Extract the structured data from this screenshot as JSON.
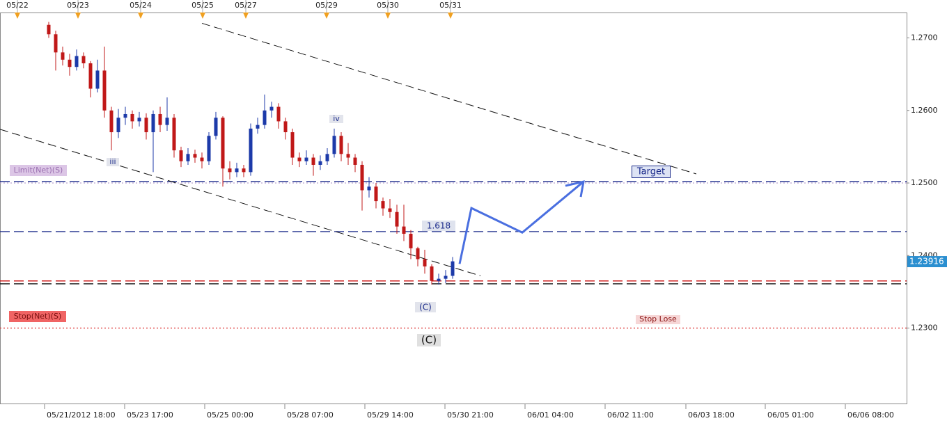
{
  "chart_data": {
    "type": "candlestick",
    "x": [
      14,
      16,
      18,
      20,
      22,
      24,
      26,
      28,
      30,
      32,
      34,
      36,
      38,
      40,
      42,
      44,
      46,
      48,
      50,
      52,
      54,
      56,
      58,
      60,
      62,
      64,
      66,
      68,
      70,
      72,
      74,
      76,
      78,
      80,
      82,
      84,
      86,
      88,
      90,
      92,
      94,
      96,
      98,
      100,
      102,
      104,
      106,
      108,
      110,
      112,
      114,
      116,
      118,
      120,
      122,
      124,
      126,
      128,
      130
    ],
    "open": [
      1.2718,
      1.2705,
      1.268,
      1.267,
      1.266,
      1.2675,
      1.2665,
      1.263,
      1.2655,
      1.26,
      1.257,
      1.259,
      1.2595,
      1.2585,
      1.259,
      1.257,
      1.2595,
      1.258,
      1.259,
      1.2545,
      1.253,
      1.254,
      1.2535,
      1.253,
      1.2565,
      1.259,
      1.252,
      1.2515,
      1.252,
      1.2515,
      1.2575,
      1.258,
      1.26,
      1.2605,
      1.2585,
      1.257,
      1.2535,
      1.253,
      1.2535,
      1.2525,
      1.253,
      1.254,
      1.2565,
      1.254,
      1.2535,
      1.2525,
      1.249,
      1.2495,
      1.2475,
      1.2465,
      1.246,
      1.244,
      1.243,
      1.241,
      1.2395,
      1.2385,
      1.2365,
      1.2368,
      1.2372
    ],
    "high": [
      1.2722,
      1.271,
      1.2688,
      1.2678,
      1.2684,
      1.268,
      1.2668,
      1.267,
      1.2688,
      1.2605,
      1.2602,
      1.2605,
      1.26,
      1.2598,
      1.2596,
      1.26,
      1.2605,
      1.2618,
      1.2595,
      1.255,
      1.2548,
      1.2546,
      1.2542,
      1.257,
      1.2598,
      1.2592,
      1.253,
      1.2528,
      1.2525,
      1.2582,
      1.259,
      1.2622,
      1.2612,
      1.261,
      1.259,
      1.2575,
      1.2542,
      1.2545,
      1.254,
      1.2538,
      1.2548,
      1.2575,
      1.257,
      1.2555,
      1.254,
      1.253,
      1.2508,
      1.25,
      1.248,
      1.2478,
      1.247,
      1.247,
      1.2435,
      1.2412,
      1.2408,
      1.2388,
      1.2375,
      1.238,
      1.2398
    ],
    "low": [
      1.27,
      1.2655,
      1.2662,
      1.2648,
      1.2655,
      1.2658,
      1.2618,
      1.2625,
      1.259,
      1.2545,
      1.2562,
      1.258,
      1.2575,
      1.2578,
      1.256,
      1.2515,
      1.257,
      1.2572,
      1.2535,
      1.2522,
      1.2525,
      1.2528,
      1.252,
      1.2525,
      1.256,
      1.2495,
      1.2505,
      1.2508,
      1.2508,
      1.251,
      1.2568,
      1.2575,
      1.259,
      1.2575,
      1.256,
      1.2525,
      1.2522,
      1.2525,
      1.251,
      1.2518,
      1.2525,
      1.2535,
      1.253,
      1.2525,
      1.2515,
      1.2462,
      1.248,
      1.2465,
      1.2455,
      1.2452,
      1.243,
      1.242,
      1.2395,
      1.2385,
      1.2375,
      1.236,
      1.236,
      1.2362,
      1.2368
    ],
    "close": [
      1.2705,
      1.268,
      1.267,
      1.266,
      1.2675,
      1.2665,
      1.263,
      1.2655,
      1.26,
      1.257,
      1.259,
      1.2595,
      1.2585,
      1.259,
      1.257,
      1.2595,
      1.258,
      1.259,
      1.2545,
      1.253,
      1.254,
      1.2535,
      1.253,
      1.2565,
      1.259,
      1.252,
      1.2515,
      1.252,
      1.2515,
      1.2575,
      1.258,
      1.26,
      1.2605,
      1.2585,
      1.257,
      1.2535,
      1.253,
      1.2535,
      1.2525,
      1.253,
      1.254,
      1.2565,
      1.254,
      1.2535,
      1.2525,
      1.249,
      1.2495,
      1.2475,
      1.2465,
      1.246,
      1.244,
      1.243,
      1.241,
      1.2395,
      1.2385,
      1.2365,
      1.2368,
      1.2372,
      1.2392
    ],
    "up_color": "#1c3aa9",
    "down_color": "#c01818",
    "xlim": [
      0,
      260.4
    ],
    "ylim": [
      1.2196,
      1.2735
    ],
    "yticks": [
      {
        "value": 1.23,
        "label": "1.2300"
      },
      {
        "value": 1.24,
        "label": "1.2400"
      },
      {
        "value": 1.25,
        "label": "1.2500"
      },
      {
        "value": 1.26,
        "label": "1.2600"
      },
      {
        "value": 1.27,
        "label": "1.2700"
      }
    ],
    "xticks": [
      {
        "value": 12.8,
        "label": "05/21/2012 18:00"
      },
      {
        "value": 35.8,
        "label": "05/23 17:00"
      },
      {
        "value": 58.8,
        "label": "05/25 00:00"
      },
      {
        "value": 81.8,
        "label": "05/28 07:00"
      },
      {
        "value": 104.8,
        "label": "05/29 14:00"
      },
      {
        "value": 127.8,
        "label": "05/30 21:00"
      },
      {
        "value": 150.8,
        "label": "06/01 04:00"
      },
      {
        "value": 173.8,
        "label": "06/02 11:00"
      },
      {
        "value": 197,
        "label": "06/03 18:00"
      },
      {
        "value": 219.8,
        "label": "06/05 01:00"
      },
      {
        "value": 242.8,
        "label": "06/06 08:00"
      }
    ],
    "day_ticks": [
      {
        "value": 5,
        "label": "05/22"
      },
      {
        "value": 22.4,
        "label": "05/23"
      },
      {
        "value": 40.4,
        "label": "05/24"
      },
      {
        "value": 58.2,
        "label": "05/25"
      },
      {
        "value": 70.6,
        "label": "05/27"
      },
      {
        "value": 93.8,
        "label": "05/29"
      },
      {
        "value": 111.4,
        "label": "05/30"
      },
      {
        "value": 129.4,
        "label": "05/31"
      }
    ],
    "last_price": {
      "value": 1.23916,
      "label": "1.23916"
    },
    "levels": [
      {
        "value": 1.25,
        "color": "#b9a0d0",
        "dash": "2 3"
      },
      {
        "value": 1.2502,
        "color": "#1a2a8a",
        "dash": "14 6"
      },
      {
        "value": 1.2433,
        "color": "#1a2a8a",
        "dash": "14 6"
      },
      {
        "value": 1.2365,
        "color": "#cc1111",
        "dash": "14 6"
      },
      {
        "value": 1.2361,
        "color": "#111111",
        "dash": "14 6"
      },
      {
        "value": 1.23,
        "color": "#e04040",
        "dash": "2 3"
      }
    ],
    "trend_lines": [
      {
        "x": [
          58,
          200
        ],
        "y": [
          1.27202,
          1.25125
        ]
      },
      {
        "x": [
          0,
          138
        ],
        "y": [
          1.2574,
          1.23721
        ]
      }
    ],
    "projection": {
      "x": [
        132,
        135.4,
        150,
        167.6
      ],
      "y": [
        1.23885,
        1.24654,
        1.24317,
        1.25019
      ],
      "color": "#4a6fe0"
    },
    "annotations": {
      "limit": "Limit(Net)(S)",
      "stop": "Stop(Net)(S)",
      "target": "Target",
      "fib": "1.618",
      "stop_lose": "Stop Lose",
      "wave_iii": "iii",
      "wave_iv": "iv",
      "wave_c_small": "(C)",
      "wave_c_big": "(C)"
    }
  }
}
